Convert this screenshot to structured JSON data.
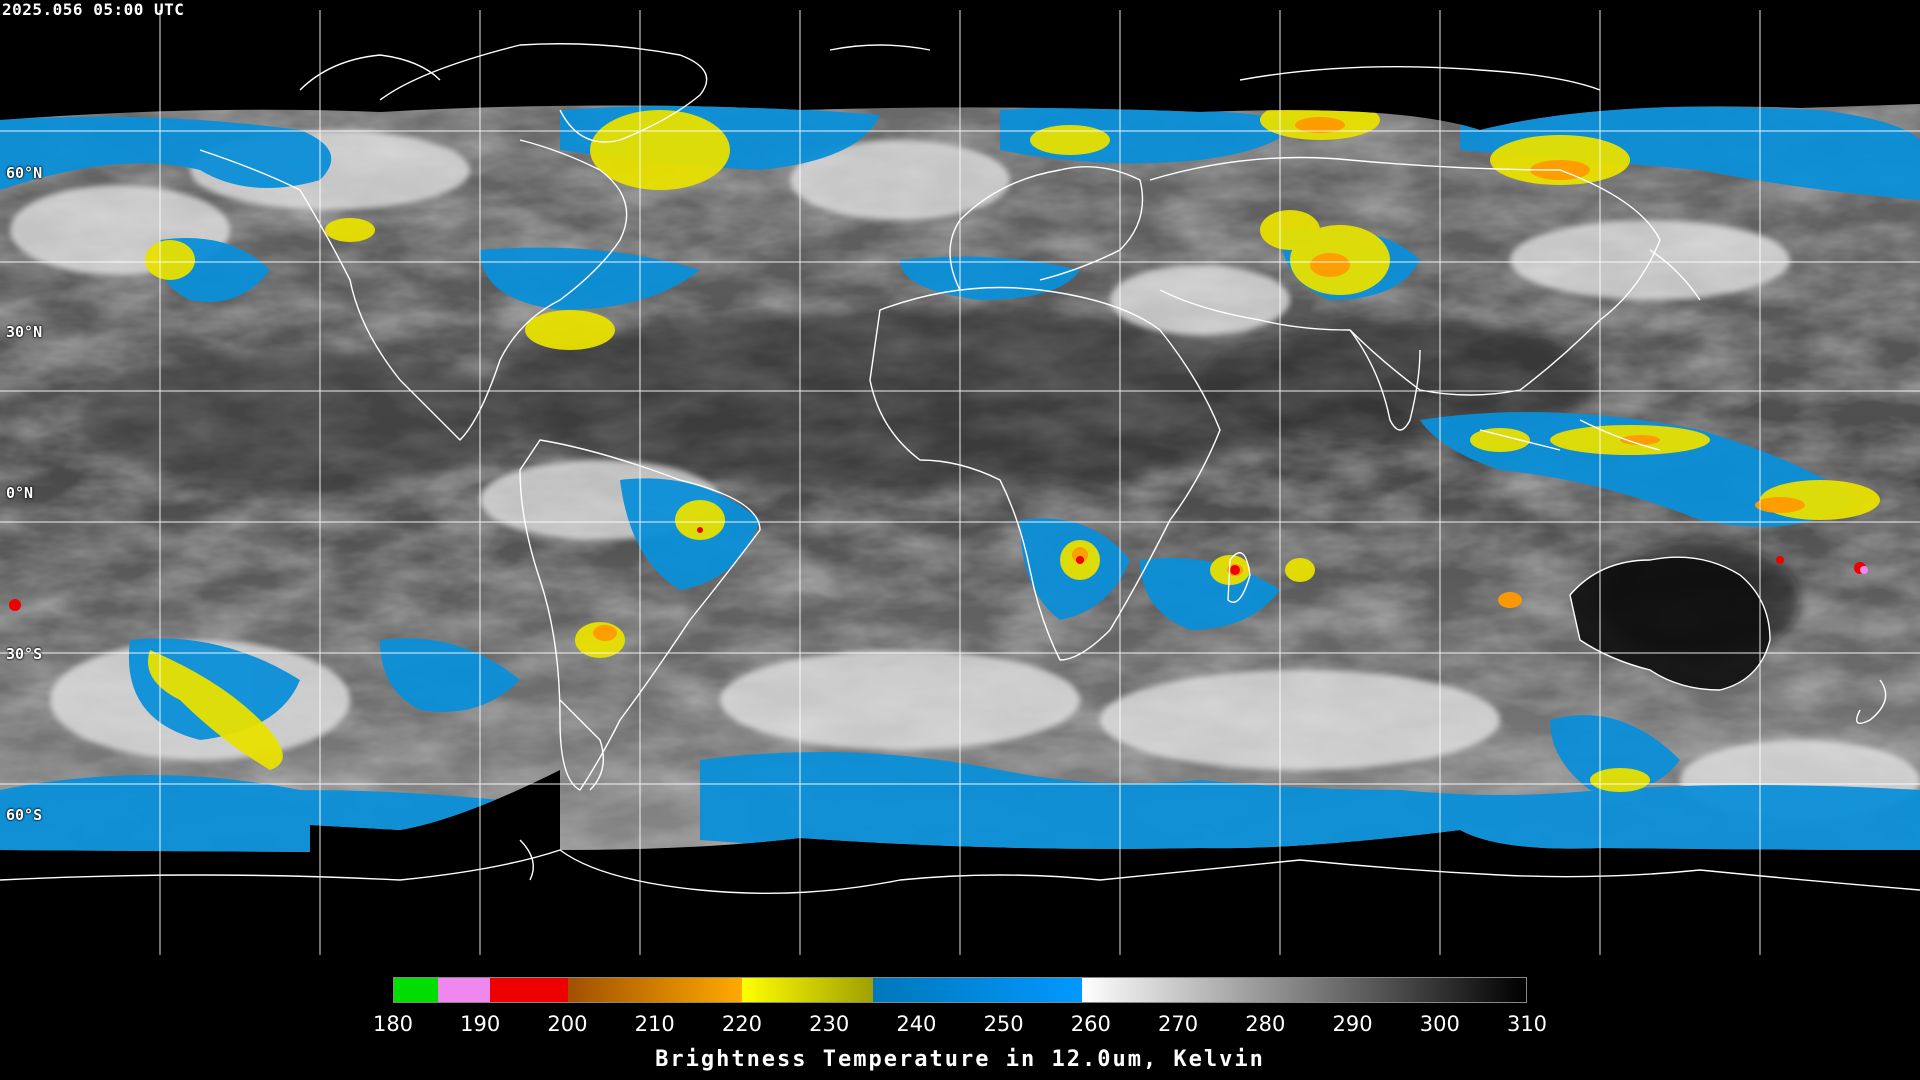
{
  "timestamp": "2025.056 05:00 UTC",
  "map": {
    "projection": "equirectangular",
    "gridlines": "every 30 degrees",
    "coastline_color": "#ffffff",
    "background": "#000000",
    "lat_labels": [
      "60°N",
      "30°N",
      "0°N",
      "30°S",
      "60°S"
    ],
    "features": [
      "tropical cyclone near Madagascar",
      "tropical cyclone near Fiji/Vanuatu",
      "cold cloud band Australia NW",
      "convection Amazon",
      "convection Congo basin",
      "mid-latitude storms North Pacific",
      "Southern Ocean frontal clouds"
    ]
  },
  "colorbar": {
    "title": "Brightness Temperature in 12.0um, Kelvin",
    "units": "Kelvin",
    "range": [
      180,
      310
    ],
    "ticks": [
      "180",
      "190",
      "200",
      "210",
      "220",
      "230",
      "240",
      "250",
      "260",
      "270",
      "280",
      "290",
      "300",
      "310"
    ],
    "segments": [
      {
        "from": 180,
        "to": 185,
        "color": "#00dd00"
      },
      {
        "from": 185,
        "to": 191,
        "color": "#ee88ee"
      },
      {
        "from": 191,
        "to": 200,
        "color": "#ee0000"
      },
      {
        "from": 200,
        "to": 220,
        "color_start": "#a05000",
        "color_end": "#ffaa00"
      },
      {
        "from": 220,
        "to": 235,
        "color_start": "#ffff00",
        "color_end": "#a0a000"
      },
      {
        "from": 235,
        "to": 259,
        "color_start": "#0077bb",
        "color_end": "#0099ff"
      },
      {
        "from": 259,
        "to": 310,
        "color_start": "#ffffff",
        "color_end": "#000000"
      }
    ]
  }
}
